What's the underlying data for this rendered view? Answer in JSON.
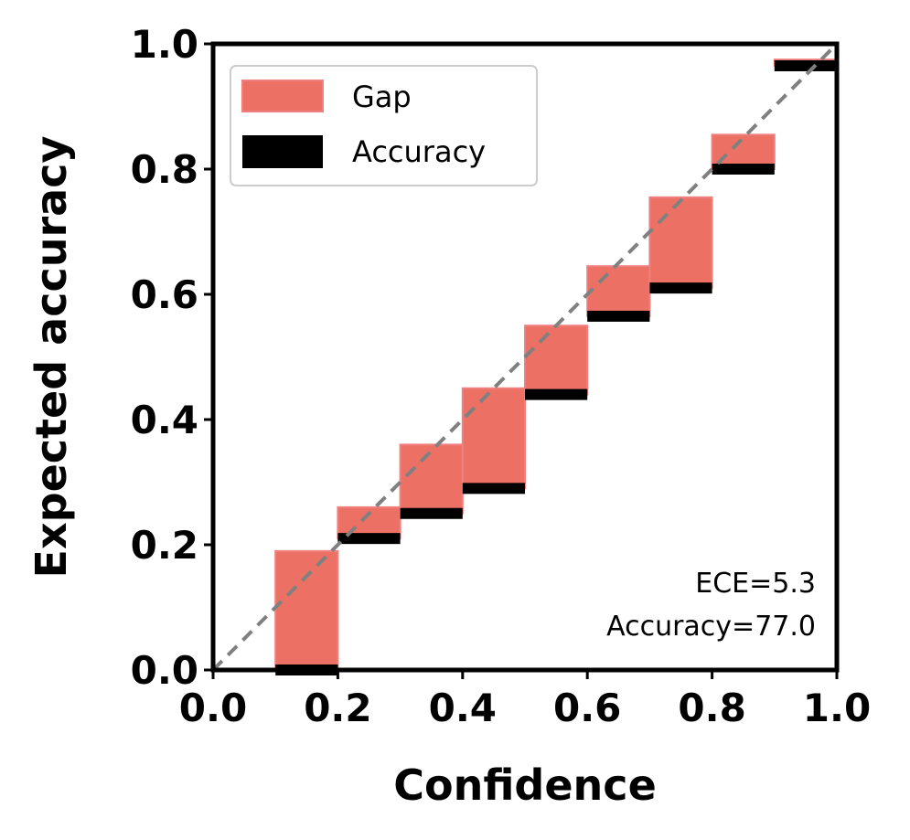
{
  "chart_data": {
    "type": "bar",
    "xlabel": "Confidence",
    "ylabel": "Expected accuracy",
    "xlim": [
      0.0,
      1.0
    ],
    "ylim": [
      0.0,
      1.0
    ],
    "xticks": [
      "0.0",
      "0.2",
      "0.4",
      "0.6",
      "0.8",
      "1.0"
    ],
    "yticks": [
      "0.0",
      "0.2",
      "0.4",
      "0.6",
      "0.8",
      "1.0"
    ],
    "grid": false,
    "legend_position": "top-left",
    "bin_width": 0.1,
    "bins": [
      {
        "left": 0.1,
        "gap_top": 0.19,
        "accuracy": 0.0
      },
      {
        "left": 0.2,
        "gap_top": 0.26,
        "accuracy": 0.21
      },
      {
        "left": 0.3,
        "gap_top": 0.36,
        "accuracy": 0.25
      },
      {
        "left": 0.4,
        "gap_top": 0.45,
        "accuracy": 0.29
      },
      {
        "left": 0.5,
        "gap_top": 0.55,
        "accuracy": 0.44
      },
      {
        "left": 0.6,
        "gap_top": 0.645,
        "accuracy": 0.565
      },
      {
        "left": 0.7,
        "gap_top": 0.755,
        "accuracy": 0.61
      },
      {
        "left": 0.8,
        "gap_top": 0.855,
        "accuracy": 0.8
      },
      {
        "left": 0.9,
        "gap_top": 0.975,
        "accuracy": 0.965
      }
    ],
    "series": [
      {
        "name": "Gap",
        "color": "#ec7063"
      },
      {
        "name": "Accuracy",
        "color": "#000000"
      }
    ],
    "diagonal": {
      "from": [
        0,
        0
      ],
      "to": [
        1,
        1
      ],
      "color": "#808080",
      "style": "dashed"
    },
    "annotations": [
      "ECE=5.3",
      "Accuracy=77.0"
    ]
  }
}
